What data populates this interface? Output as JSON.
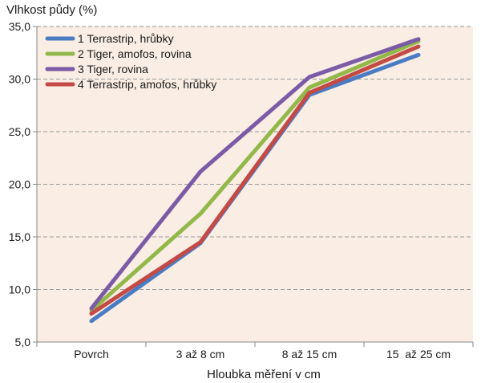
{
  "chart_data": {
    "type": "line",
    "title": "",
    "ylabel": "Vlhkost půdy (%)",
    "xlabel": "Hloubka měření v cm",
    "categories": [
      "Povrch",
      "3 až 8 cm",
      "8 až 15 cm",
      "15  až 25 cm"
    ],
    "ylim": [
      5.0,
      35.0
    ],
    "yticks": [
      5.0,
      10.0,
      15.0,
      20.0,
      25.0,
      30.0,
      35.0
    ],
    "ytick_labels": [
      "5,0",
      "10,0",
      "15,0",
      "20,0",
      "25,0",
      "30,0",
      "35,0"
    ],
    "grid": "horizontal dashed",
    "legend_position": "top-left",
    "series": [
      {
        "name": "1 Terrastrip, hrůbky",
        "color": "#4a7cc4",
        "values": [
          7.0,
          14.4,
          28.5,
          32.3
        ]
      },
      {
        "name": "2 Tiger, amofos, rovina",
        "color": "#93b84a",
        "values": [
          8.0,
          17.2,
          29.2,
          33.6
        ]
      },
      {
        "name": "3 Tiger, rovina",
        "color": "#7b5aa6",
        "values": [
          8.2,
          21.2,
          30.2,
          33.8
        ]
      },
      {
        "name": "4 Terrastrip, amofos, hrůbky",
        "color": "#c44a45",
        "values": [
          7.7,
          14.5,
          28.7,
          33.1
        ]
      }
    ],
    "colors": {
      "plot_background": "#f9ede4",
      "grid": "#999999",
      "axis": "#888888"
    }
  }
}
